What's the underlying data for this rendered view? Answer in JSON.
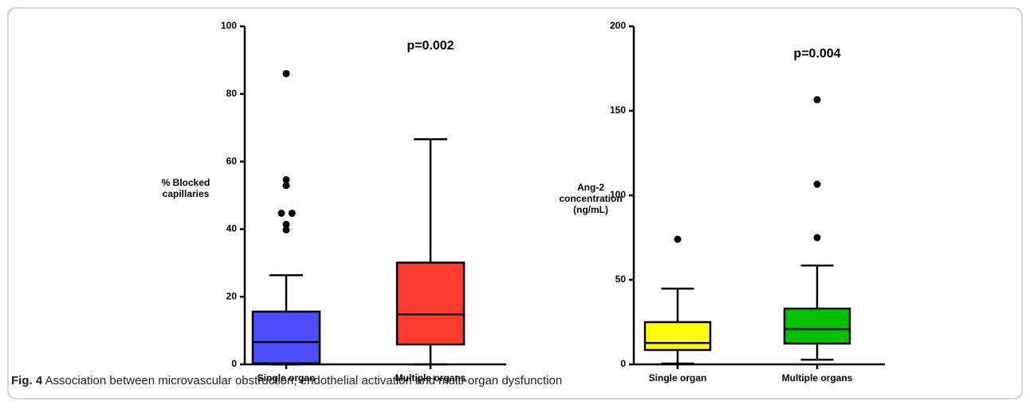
{
  "chart_data": [
    {
      "type": "box",
      "annotation": "p=0.002",
      "ylabel": [
        "% Blocked",
        "capillaries"
      ],
      "categories": [
        "Single organ",
        "Multiple organs"
      ],
      "boxes": [
        {
          "min": 0,
          "q1": 0.3,
          "median": 6.6,
          "q3": 15.6,
          "max": 26.4,
          "outliers": [
            86,
            54.6,
            52.9,
            44.7,
            44.7,
            41.4,
            39.8
          ],
          "color": "#4d4dff"
        },
        {
          "min": 0,
          "q1": 5.9,
          "median": 14.8,
          "q3": 30.1,
          "max": 66.6,
          "outliers": [],
          "color": "#ff3b2f"
        }
      ],
      "ylim": [
        0,
        100
      ],
      "yticks": [
        0,
        20,
        40,
        60,
        80,
        100
      ]
    },
    {
      "type": "box",
      "annotation": "p=0.004",
      "ylabel": [
        "Ang-2",
        "concentration",
        "(ng/mL)"
      ],
      "categories": [
        "Single organ",
        "Multiple organs"
      ],
      "boxes": [
        {
          "min": 0.5,
          "q1": 8.5,
          "median": 12.7,
          "q3": 25,
          "max": 44.8,
          "outliers": [
            74
          ],
          "color": "#ffff00"
        },
        {
          "min": 2.8,
          "q1": 12.3,
          "median": 20.8,
          "q3": 33,
          "max": 58.5,
          "outliers": [
            75,
            106.6,
            156.6
          ],
          "color": "#00c000"
        }
      ],
      "ylim": [
        0,
        200
      ],
      "yticks": [
        0,
        50,
        100,
        150,
        200
      ]
    }
  ],
  "caption": {
    "label": "Fig. 4",
    "text": "Association between microvascular obstruction, endothelial activation and multi-organ dysfunction"
  }
}
